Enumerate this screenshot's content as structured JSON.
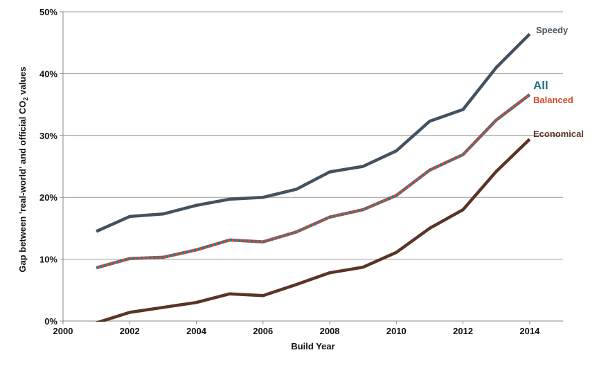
{
  "chart_data": {
    "type": "line",
    "xlabel": "Build Year",
    "ylabel_parts": {
      "prefix": "Gap between 'real-world' and official CO",
      "subscript": "2",
      "suffix": " values"
    },
    "xlim": [
      2000,
      2015
    ],
    "ylim": [
      0,
      50
    ],
    "x_ticks": [
      2000,
      2002,
      2004,
      2006,
      2008,
      2010,
      2012,
      2014
    ],
    "x_tick_labels": [
      "2000",
      "2002",
      "2004",
      "2006",
      "2008",
      "2010",
      "2012",
      "2014"
    ],
    "y_ticks": [
      0,
      10,
      20,
      30,
      40,
      50
    ],
    "y_tick_labels": [
      "0%",
      "10%",
      "20%",
      "30%",
      "40%",
      "50%"
    ],
    "grid": true,
    "x": [
      2001,
      2002,
      2003,
      2004,
      2005,
      2006,
      2007,
      2008,
      2009,
      2010,
      2011,
      2012,
      2013,
      2014
    ],
    "series": [
      {
        "name": "Speedy",
        "color": "#44525f",
        "style": "solid",
        "values": [
          14.5,
          16.9,
          17.3,
          18.7,
          19.7,
          20.0,
          21.3,
          24.1,
          25.0,
          27.5,
          32.3,
          34.2,
          41.0,
          46.4
        ]
      },
      {
        "name": "Balanced",
        "color": "#d9472b",
        "style": "solid",
        "values": [
          8.6,
          10.1,
          10.3,
          11.5,
          13.1,
          12.8,
          14.4,
          16.8,
          18.0,
          20.3,
          24.4,
          26.9,
          32.5,
          36.6
        ]
      },
      {
        "name": "All",
        "color": "#2e7a93",
        "style": "dotted",
        "values": [
          8.6,
          10.1,
          10.3,
          11.5,
          13.1,
          12.8,
          14.4,
          16.8,
          18.0,
          20.3,
          24.4,
          26.9,
          32.5,
          36.6
        ]
      },
      {
        "name": "Economical",
        "color": "#5a3426",
        "style": "solid",
        "values": [
          -0.3,
          1.4,
          2.2,
          3.0,
          4.4,
          4.1,
          5.9,
          7.8,
          8.7,
          11.1,
          15.0,
          18.0,
          24.2,
          29.4
        ]
      }
    ],
    "series_labels": [
      {
        "name": "Speedy",
        "color": "#44525f"
      },
      {
        "name": "All",
        "color": "#1f6f89"
      },
      {
        "name": "Balanced",
        "color": "#d9472b"
      },
      {
        "name": "Economical",
        "color": "#5a3426"
      }
    ]
  }
}
